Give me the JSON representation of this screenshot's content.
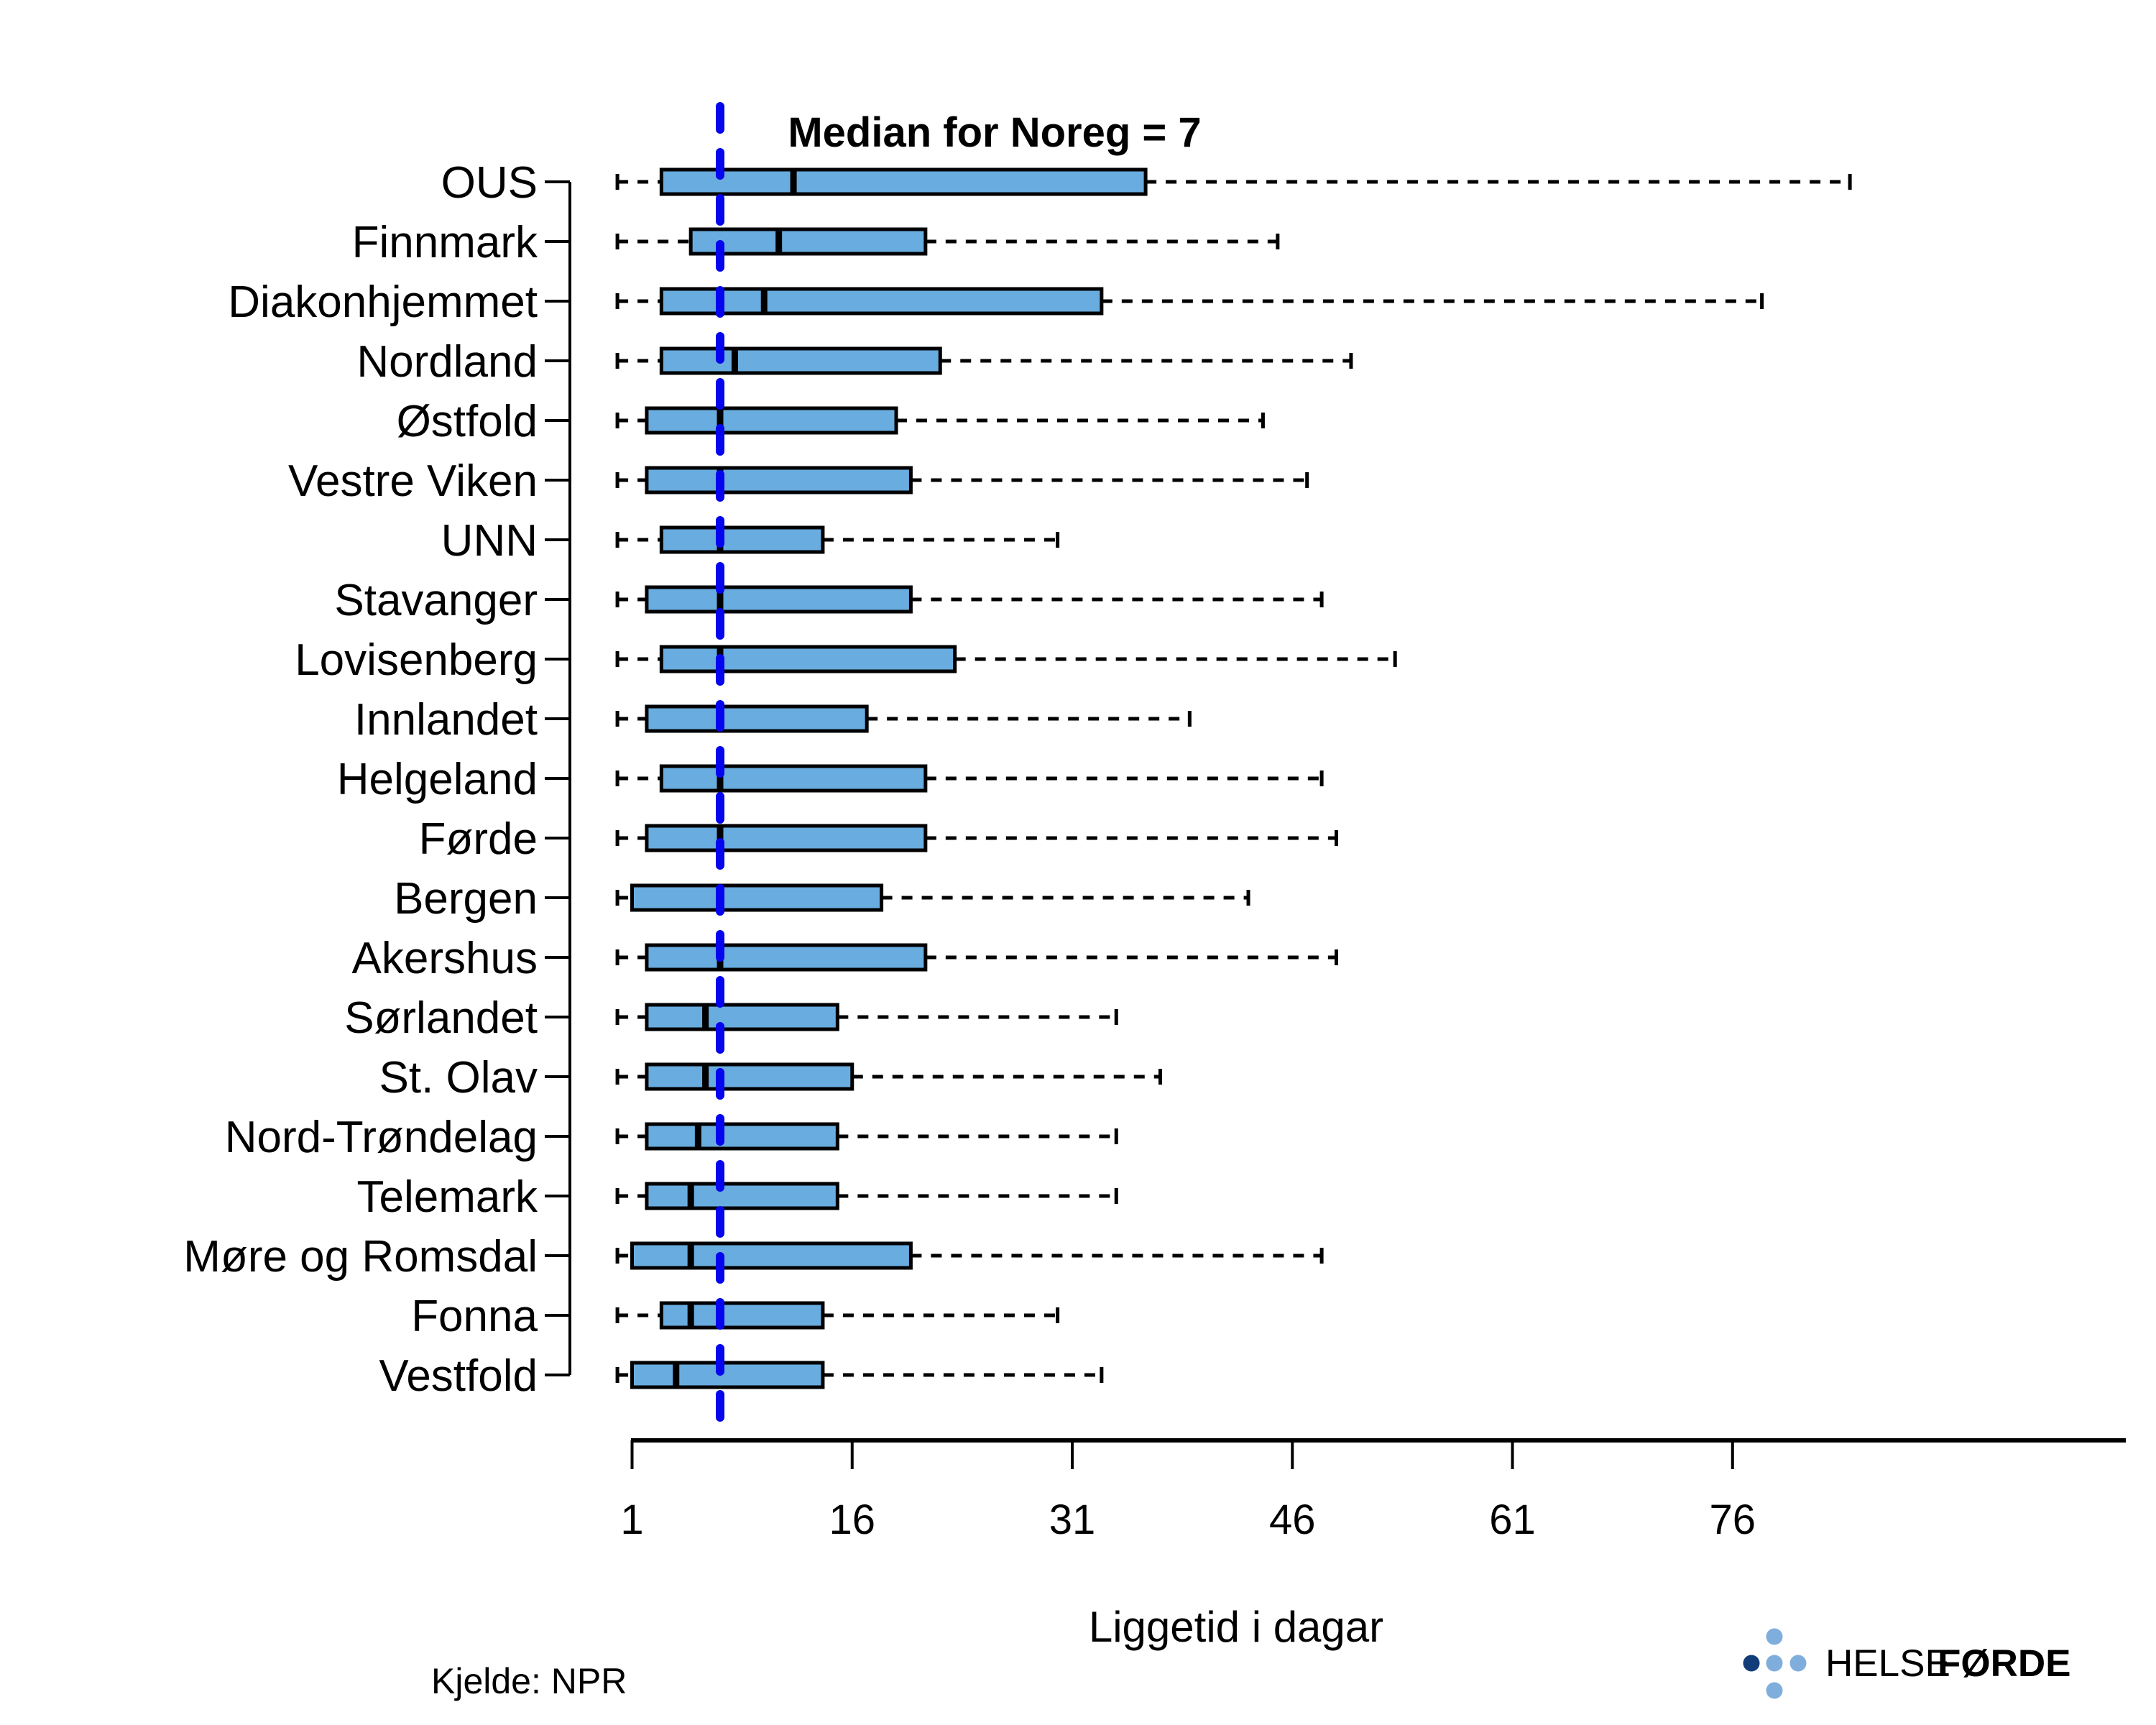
{
  "title": {
    "text": "Median for Noreg = 7"
  },
  "footer": {
    "source": "Kjelde: NPR"
  },
  "logo": {
    "part1": "HELSE",
    "part2": "FØRDE",
    "dot_light_color": "#7FAEDC",
    "dot_dark_color": "#123D78",
    "text1_color": "#1B5A9E",
    "text2_color": "#123D78"
  },
  "chart_data": {
    "type": "boxplot",
    "orientation": "horizontal",
    "title": "Median for Noreg = 7",
    "xlabel": "Liggetid i dagar",
    "ylabel": "",
    "x_ticks": [
      1,
      16,
      31,
      46,
      61,
      76
    ],
    "xlim": [
      0,
      90
    ],
    "grid": false,
    "box_fill_color": "#69ACDF",
    "box_stroke_color": "#000000",
    "reference_line": {
      "value": 7,
      "color": "#0505EE",
      "style": "dashed",
      "label": "Median for Noreg = 7"
    },
    "categories": [
      "OUS",
      "Finnmark",
      "Diakonhjemmet",
      "Nordland",
      "Østfold",
      "Vestre Viken",
      "UNN",
      "Stavanger",
      "Lovisenberg",
      "Innlandet",
      "Helgeland",
      "Førde",
      "Bergen",
      "Akershus",
      "Sørlandet",
      "St. Olav",
      "Nord-Trøndelag",
      "Telemark",
      "Møre og Romsdal",
      "Fonna",
      "Vestfold"
    ],
    "series": [
      {
        "name": "OUS",
        "min": 0,
        "q1": 3,
        "median": 12,
        "q3": 36,
        "max": 84
      },
      {
        "name": "Finnmark",
        "min": 0,
        "q1": 5,
        "median": 11,
        "q3": 21,
        "max": 45
      },
      {
        "name": "Diakonhjemmet",
        "min": 0,
        "q1": 3,
        "median": 10,
        "q3": 33,
        "max": 78
      },
      {
        "name": "Nordland",
        "min": 0,
        "q1": 3,
        "median": 8,
        "q3": 22,
        "max": 50
      },
      {
        "name": "Østfold",
        "min": 0,
        "q1": 2,
        "median": 7,
        "q3": 19,
        "max": 44
      },
      {
        "name": "Vestre Viken",
        "min": 0,
        "q1": 2,
        "median": 7,
        "q3": 20,
        "max": 47
      },
      {
        "name": "UNN",
        "min": 0,
        "q1": 3,
        "median": 7,
        "q3": 14,
        "max": 30
      },
      {
        "name": "Stavanger",
        "min": 0,
        "q1": 2,
        "median": 7,
        "q3": 20,
        "max": 48
      },
      {
        "name": "Lovisenberg",
        "min": 0,
        "q1": 3,
        "median": 7,
        "q3": 23,
        "max": 53
      },
      {
        "name": "Innlandet",
        "min": 0,
        "q1": 2,
        "median": 7,
        "q3": 17,
        "max": 39
      },
      {
        "name": "Helgeland",
        "min": 0,
        "q1": 3,
        "median": 7,
        "q3": 21,
        "max": 48
      },
      {
        "name": "Førde",
        "min": 0,
        "q1": 2,
        "median": 7,
        "q3": 21,
        "max": 49
      },
      {
        "name": "Bergen",
        "min": 0,
        "q1": 1,
        "median": 7,
        "q3": 18,
        "max": 43
      },
      {
        "name": "Akershus",
        "min": 0,
        "q1": 2,
        "median": 7,
        "q3": 21,
        "max": 49
      },
      {
        "name": "Sørlandet",
        "min": 0,
        "q1": 2,
        "median": 6,
        "q3": 15,
        "max": 34
      },
      {
        "name": "St. Olav",
        "min": 0,
        "q1": 2,
        "median": 6,
        "q3": 16,
        "max": 37
      },
      {
        "name": "Nord-Trøndelag",
        "min": 0,
        "q1": 2,
        "median": 5.5,
        "q3": 15,
        "max": 34
      },
      {
        "name": "Telemark",
        "min": 0,
        "q1": 2,
        "median": 5,
        "q3": 15,
        "max": 34
      },
      {
        "name": "Møre og Romsdal",
        "min": 0,
        "q1": 1,
        "median": 5,
        "q3": 20,
        "max": 48
      },
      {
        "name": "Fonna",
        "min": 0,
        "q1": 3,
        "median": 5,
        "q3": 14,
        "max": 30
      },
      {
        "name": "Vestfold",
        "min": 0,
        "q1": 1,
        "median": 4,
        "q3": 14,
        "max": 33
      }
    ]
  }
}
